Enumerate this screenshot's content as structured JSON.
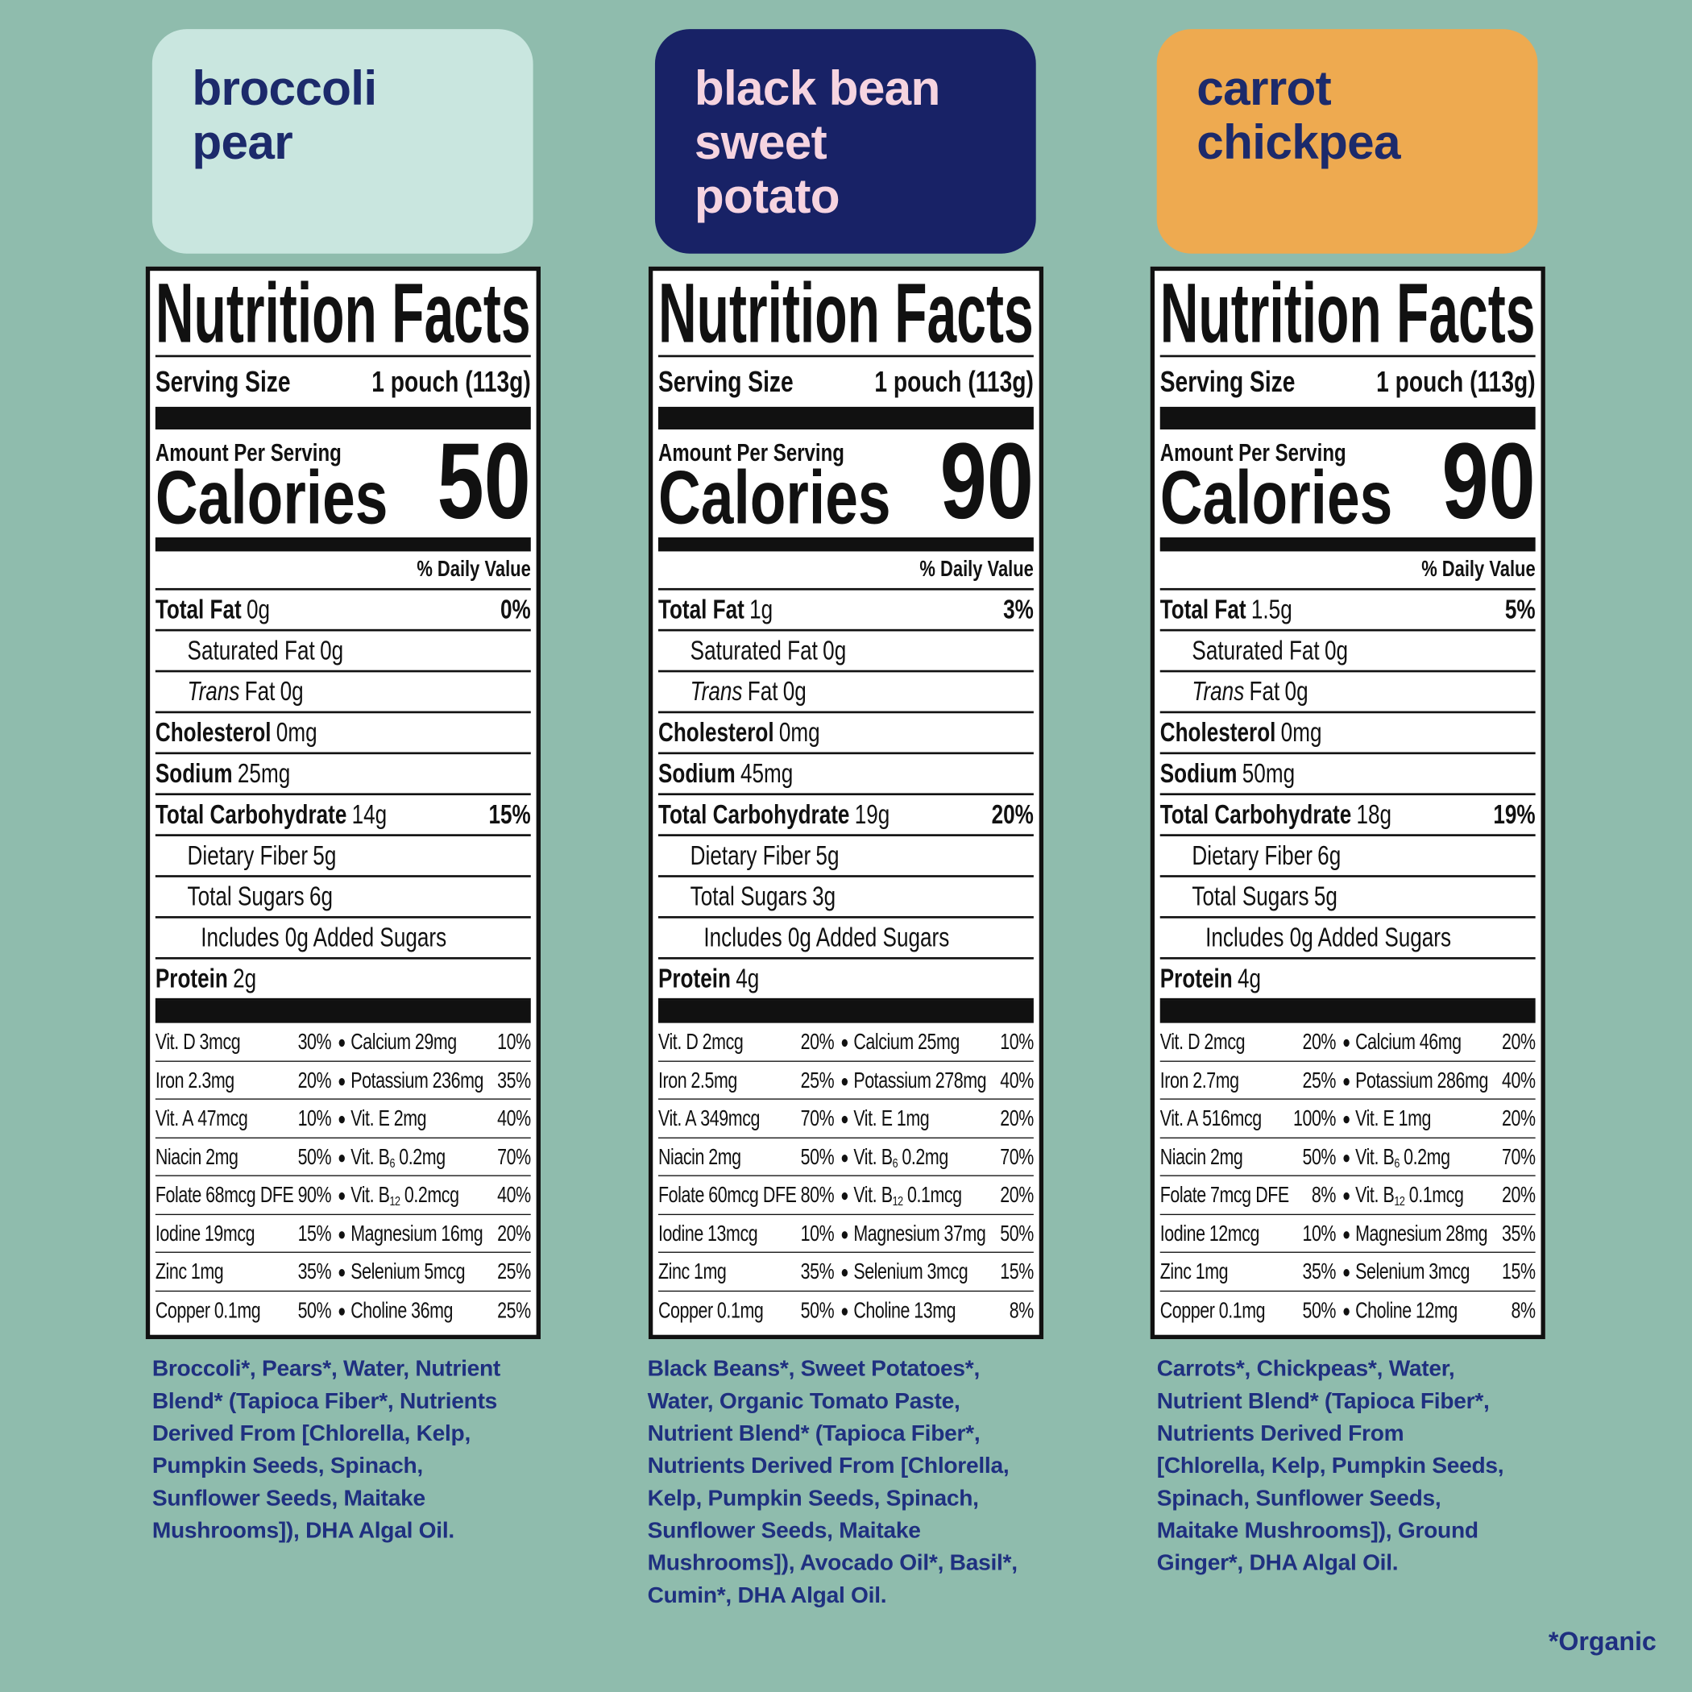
{
  "label_text": {
    "title": "Nutrition Facts",
    "serving_size": "Serving Size",
    "amount_per_serving": "Amount Per Serving",
    "calories": "Calories",
    "daily_value": "% Daily Value"
  },
  "products": [
    {
      "name_lines": [
        "broccoli",
        "pear"
      ],
      "serving": "1 pouch (113g)",
      "calories": "50",
      "nutrients": [
        {
          "name": "Total Fat",
          "amount": "0g",
          "dv": "0%",
          "sub": [
            {
              "name": "Saturated Fat",
              "amount": "0g"
            },
            {
              "italic": "Trans",
              "name": "Fat",
              "amount": "0g"
            }
          ]
        },
        {
          "name": "Cholesterol",
          "amount": "0mg"
        },
        {
          "name": "Sodium",
          "amount": "25mg"
        },
        {
          "name": "Total Carbohydrate",
          "amount": "14g",
          "dv": "15%",
          "sub": [
            {
              "name": "Dietary Fiber",
              "amount": "5g"
            },
            {
              "name": "Total Sugars",
              "amount": "6g",
              "sub": [
                {
                  "text": "Includes 0g Added Sugars"
                }
              ]
            }
          ]
        },
        {
          "name": "Protein",
          "amount": "2g"
        }
      ],
      "vitamins": [
        [
          {
            "name": "Vit. D",
            "amount": "3mcg",
            "dv": "30%"
          },
          {
            "name": "Calcium",
            "amount": "29mg",
            "dv": "10%"
          }
        ],
        [
          {
            "name": "Iron",
            "amount": "2.3mg",
            "dv": "20%"
          },
          {
            "name": "Potassium",
            "amount": "236mg",
            "dv": "35%"
          }
        ],
        [
          {
            "name": "Vit. A",
            "amount": "47mcg",
            "dv": "10%"
          },
          {
            "name": "Vit. E",
            "amount": "2mg",
            "dv": "40%"
          }
        ],
        [
          {
            "name": "Niacin",
            "amount": "2mg",
            "dv": "50%"
          },
          {
            "name": "Vit. B",
            "sub": "6",
            "amount": "0.2mg",
            "dv": "70%"
          }
        ],
        [
          {
            "name": "Folate",
            "amount": "68mcg DFE",
            "dv": "90%"
          },
          {
            "name": "Vit. B",
            "sub": "12",
            "amount": "0.2mcg",
            "dv": "40%"
          }
        ],
        [
          {
            "name": "Iodine",
            "amount": "19mcg",
            "dv": "15%"
          },
          {
            "name": "Magnesium",
            "amount": "16mg",
            "dv": "20%"
          }
        ],
        [
          {
            "name": "Zinc",
            "amount": "1mg",
            "dv": "35%"
          },
          {
            "name": "Selenium",
            "amount": "5mcg",
            "dv": "25%"
          }
        ],
        [
          {
            "name": "Copper",
            "amount": "0.1mg",
            "dv": "50%"
          },
          {
            "name": "Choline",
            "amount": "36mg",
            "dv": "25%"
          }
        ]
      ],
      "ingredients_lines": [
        "Broccoli*, Pears*, Water, Nutrient",
        "Blend* (Tapioca Fiber*, Nutrients",
        "Derived From [Chlorella, Kelp,",
        "Pumpkin Seeds, Spinach,",
        "Sunflower Seeds, Maitake",
        "Mushrooms]), DHA Algal Oil."
      ]
    },
    {
      "name_lines": [
        "black bean",
        "sweet",
        "potato"
      ],
      "serving": "1 pouch (113g)",
      "calories": "90",
      "nutrients": [
        {
          "name": "Total Fat",
          "amount": "1g",
          "dv": "3%",
          "sub": [
            {
              "name": "Saturated Fat",
              "amount": "0g"
            },
            {
              "italic": "Trans",
              "name": "Fat",
              "amount": "0g"
            }
          ]
        },
        {
          "name": "Cholesterol",
          "amount": "0mg"
        },
        {
          "name": "Sodium",
          "amount": "45mg"
        },
        {
          "name": "Total Carbohydrate",
          "amount": "19g",
          "dv": "20%",
          "sub": [
            {
              "name": "Dietary Fiber",
              "amount": "5g"
            },
            {
              "name": "Total Sugars",
              "amount": "3g",
              "sub": [
                {
                  "text": "Includes 0g Added Sugars"
                }
              ]
            }
          ]
        },
        {
          "name": "Protein",
          "amount": "4g"
        }
      ],
      "vitamins": [
        [
          {
            "name": "Vit. D",
            "amount": "2mcg",
            "dv": "20%"
          },
          {
            "name": "Calcium",
            "amount": "25mg",
            "dv": "10%"
          }
        ],
        [
          {
            "name": "Iron",
            "amount": "2.5mg",
            "dv": "25%"
          },
          {
            "name": "Potassium",
            "amount": "278mg",
            "dv": "40%"
          }
        ],
        [
          {
            "name": "Vit. A",
            "amount": "349mcg",
            "dv": "70%"
          },
          {
            "name": "Vit. E",
            "amount": "1mg",
            "dv": "20%"
          }
        ],
        [
          {
            "name": "Niacin",
            "amount": "2mg",
            "dv": "50%"
          },
          {
            "name": "Vit. B",
            "sub": "6",
            "amount": "0.2mg",
            "dv": "70%"
          }
        ],
        [
          {
            "name": "Folate",
            "amount": "60mcg DFE",
            "dv": "80%"
          },
          {
            "name": "Vit. B",
            "sub": "12",
            "amount": "0.1mcg",
            "dv": "20%"
          }
        ],
        [
          {
            "name": "Iodine",
            "amount": "13mcg",
            "dv": "10%"
          },
          {
            "name": "Magnesium",
            "amount": "37mg",
            "dv": "50%"
          }
        ],
        [
          {
            "name": "Zinc",
            "amount": "1mg",
            "dv": "35%"
          },
          {
            "name": "Selenium",
            "amount": "3mcg",
            "dv": "15%"
          }
        ],
        [
          {
            "name": "Copper",
            "amount": "0.1mg",
            "dv": "50%"
          },
          {
            "name": "Choline",
            "amount": "13mg",
            "dv": "8%"
          }
        ]
      ],
      "ingredients_lines": [
        "Black Beans*, Sweet Potatoes*,",
        "Water, Organic Tomato Paste,",
        "Nutrient Blend* (Tapioca Fiber*,",
        "Nutrients Derived From [Chlorella,",
        "Kelp, Pumpkin Seeds, Spinach,",
        "Sunflower Seeds, Maitake",
        "Mushrooms]), Avocado Oil*, Basil*,",
        "Cumin*, DHA Algal Oil."
      ]
    },
    {
      "name_lines": [
        "carrot",
        "chickpea"
      ],
      "serving": "1 pouch (113g)",
      "calories": "90",
      "nutrients": [
        {
          "name": "Total Fat",
          "amount": "1.5g",
          "dv": "5%",
          "sub": [
            {
              "name": "Saturated Fat",
              "amount": "0g"
            },
            {
              "italic": "Trans",
              "name": "Fat",
              "amount": "0g"
            }
          ]
        },
        {
          "name": "Cholesterol",
          "amount": "0mg"
        },
        {
          "name": "Sodium",
          "amount": "50mg"
        },
        {
          "name": "Total Carbohydrate",
          "amount": "18g",
          "dv": "19%",
          "sub": [
            {
              "name": "Dietary Fiber",
              "amount": "6g"
            },
            {
              "name": "Total Sugars",
              "amount": "5g",
              "sub": [
                {
                  "text": "Includes 0g Added Sugars"
                }
              ]
            }
          ]
        },
        {
          "name": "Protein",
          "amount": "4g"
        }
      ],
      "vitamins": [
        [
          {
            "name": "Vit. D",
            "amount": "2mcg",
            "dv": "20%"
          },
          {
            "name": "Calcium",
            "amount": "46mg",
            "dv": "20%"
          }
        ],
        [
          {
            "name": "Iron",
            "amount": "2.7mg",
            "dv": "25%"
          },
          {
            "name": "Potassium",
            "amount": "286mg",
            "dv": "40%"
          }
        ],
        [
          {
            "name": "Vit. A",
            "amount": "516mcg",
            "dv": "100%"
          },
          {
            "name": "Vit. E",
            "amount": "1mg",
            "dv": "20%"
          }
        ],
        [
          {
            "name": "Niacin",
            "amount": "2mg",
            "dv": "50%"
          },
          {
            "name": "Vit. B",
            "sub": "6",
            "amount": "0.2mg",
            "dv": "70%"
          }
        ],
        [
          {
            "name": "Folate",
            "amount": "7mcg DFE",
            "dv": "8%"
          },
          {
            "name": "Vit. B",
            "sub": "12",
            "amount": "0.1mcg",
            "dv": "20%"
          }
        ],
        [
          {
            "name": "Iodine",
            "amount": "12mcg",
            "dv": "10%"
          },
          {
            "name": "Magnesium",
            "amount": "28mg",
            "dv": "35%"
          }
        ],
        [
          {
            "name": "Zinc",
            "amount": "1mg",
            "dv": "35%"
          },
          {
            "name": "Selenium",
            "amount": "3mcg",
            "dv": "15%"
          }
        ],
        [
          {
            "name": "Copper",
            "amount": "0.1mg",
            "dv": "50%"
          },
          {
            "name": "Choline",
            "amount": "12mg",
            "dv": "8%"
          }
        ]
      ],
      "ingredients_lines": [
        "Carrots*, Chickpeas*, Water,",
        "Nutrient Blend* (Tapioca Fiber*,",
        "Nutrients Derived From",
        "[Chlorella, Kelp, Pumpkin Seeds,",
        "Spinach, Sunflower Seeds,",
        "Maitake Mushrooms]), Ground",
        "Ginger*, DHA Algal Oil."
      ]
    }
  ],
  "footnote": "*Organic"
}
